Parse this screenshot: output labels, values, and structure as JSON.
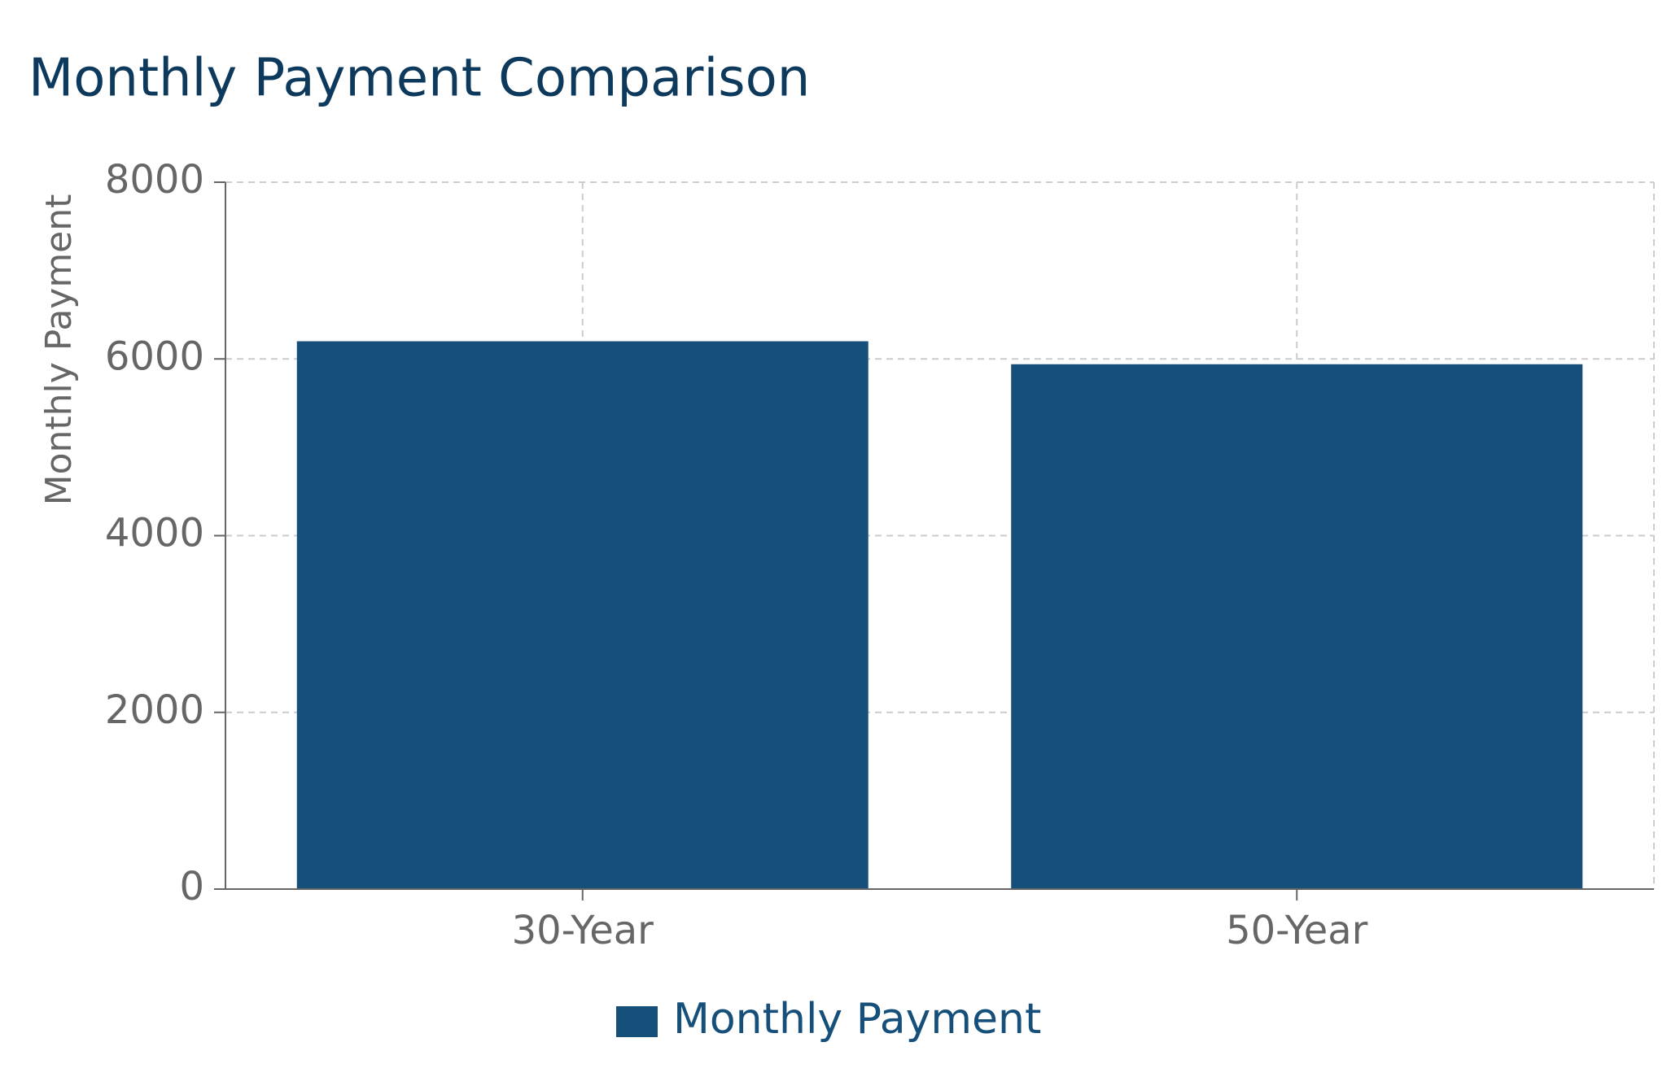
{
  "chart_data": {
    "type": "bar",
    "title": "Monthly Payment Comparison",
    "y_label": "Monthly Payment",
    "categories": [
      "30-Year",
      "50-Year"
    ],
    "series": [
      {
        "name": "Monthly Payment",
        "color": "#154f7a",
        "values": [
          6200,
          5940
        ]
      }
    ],
    "ylim": [
      0,
      8000
    ],
    "yticks": [
      0,
      2000,
      4000,
      6000,
      8000
    ],
    "grid": true,
    "legend": "bottom"
  }
}
